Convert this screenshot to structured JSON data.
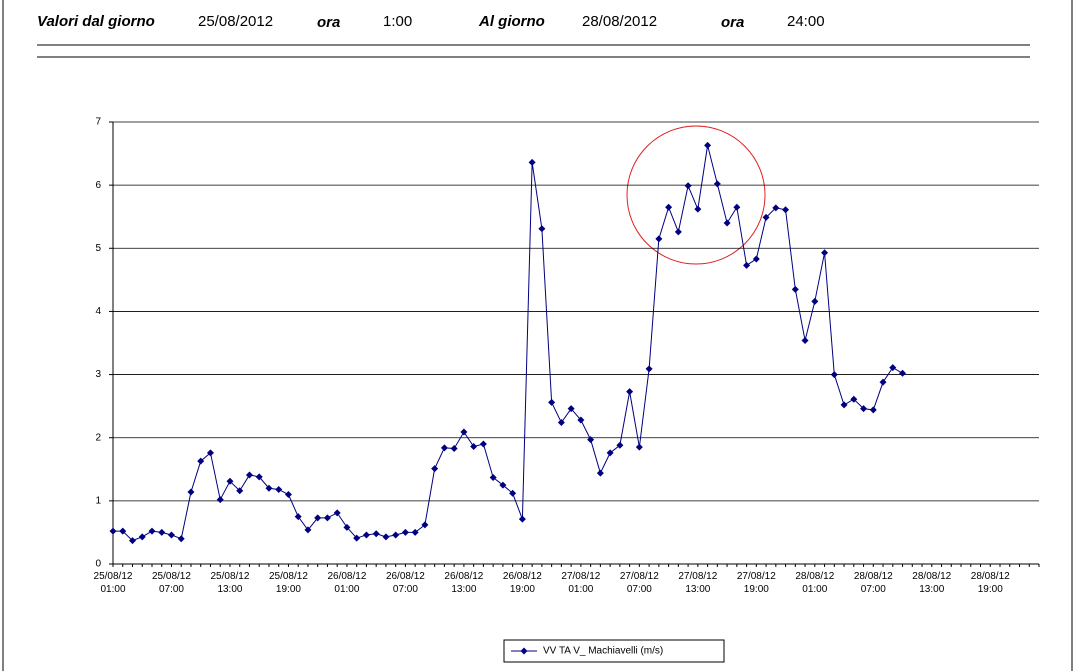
{
  "header": {
    "from_label": "Valori dal giorno",
    "from_date": "25/08/2012",
    "from_time_label": "ora",
    "from_time": "1:00",
    "to_label": "Al giorno",
    "to_date": "28/08/2012",
    "to_time_label": "ora",
    "to_time": "24:00"
  },
  "chart_data": {
    "type": "line",
    "categories": [
      "25/08/12 01:00",
      null,
      null,
      null,
      null,
      null,
      "25/08/12 07:00",
      null,
      null,
      null,
      null,
      null,
      "25/08/12 13:00",
      null,
      null,
      null,
      null,
      null,
      "25/08/12 19:00",
      null,
      null,
      null,
      null,
      null,
      "26/08/12 01:00",
      null,
      null,
      null,
      null,
      null,
      "26/08/12 07:00",
      null,
      null,
      null,
      null,
      null,
      "26/08/12 13:00",
      null,
      null,
      null,
      null,
      null,
      "26/08/12 19:00",
      null,
      null,
      null,
      null,
      null,
      "27/08/12 01:00",
      null,
      null,
      null,
      null,
      null,
      "27/08/12 07:00",
      null,
      null,
      null,
      null,
      null,
      "27/08/12 13:00",
      null,
      null,
      null,
      null,
      null,
      "27/08/12 19:00",
      null,
      null,
      null,
      null,
      null,
      "28/08/12 01:00",
      null,
      null,
      null,
      null,
      null,
      "28/08/12 07:00",
      null,
      null,
      null,
      null,
      null,
      "28/08/12 13:00",
      null,
      null,
      null,
      null,
      null,
      "28/08/12 19:00",
      null,
      null,
      null,
      null,
      null
    ],
    "series": [
      {
        "name": "VV TA V_ Machiavelli (m/s)",
        "color": "#000080",
        "values": [
          0.52,
          0.52,
          0.37,
          0.43,
          0.52,
          0.5,
          0.46,
          0.4,
          1.14,
          1.63,
          1.76,
          1.02,
          1.31,
          1.16,
          1.41,
          1.38,
          1.2,
          1.18,
          1.1,
          0.75,
          0.54,
          0.73,
          0.73,
          0.81,
          0.58,
          0.41,
          0.46,
          0.48,
          0.43,
          0.46,
          0.5,
          0.5,
          0.62,
          1.51,
          1.84,
          1.83,
          2.09,
          1.86,
          1.9,
          1.37,
          1.25,
          1.12,
          0.71,
          6.36,
          5.31,
          2.56,
          2.24,
          2.46,
          2.28,
          1.97,
          1.44,
          1.76,
          1.88,
          2.73,
          1.85,
          3.09,
          5.15,
          5.65,
          5.26,
          5.99,
          5.62,
          6.63,
          6.02,
          5.4,
          5.65,
          4.73,
          4.83,
          5.49,
          5.64,
          5.61,
          4.35,
          3.54,
          4.16,
          4.93,
          3.0,
          2.52,
          2.61,
          2.46,
          2.44,
          2.88,
          3.11,
          3.02,
          null,
          null,
          null,
          null,
          null,
          null,
          null,
          null,
          null,
          null,
          null,
          null,
          null,
          null
        ]
      }
    ],
    "ylim": [
      0,
      7
    ],
    "yticks": [
      0,
      1,
      2,
      3,
      4,
      5,
      6,
      7
    ],
    "grid": true
  }
}
